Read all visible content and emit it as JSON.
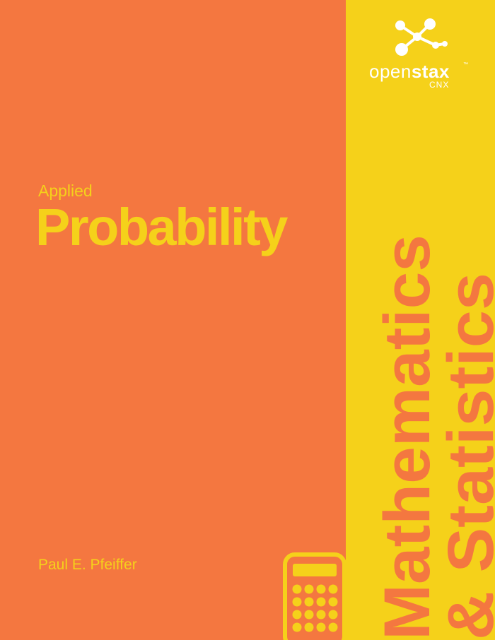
{
  "logo": {
    "icon": "molecule-icon",
    "word_light": "open",
    "word_bold": "stax",
    "trademark": "™",
    "sub": "CNX"
  },
  "book": {
    "subtitle": "Applied",
    "title": "Probability",
    "author": "Paul E. Pfeiffer"
  },
  "category": {
    "line1": "Mathematics",
    "line2": "& Statistics",
    "icon": "calculator-icon"
  },
  "colors": {
    "background": "#f47740",
    "accent": "#f5d11a",
    "logo": "#ffffff"
  }
}
